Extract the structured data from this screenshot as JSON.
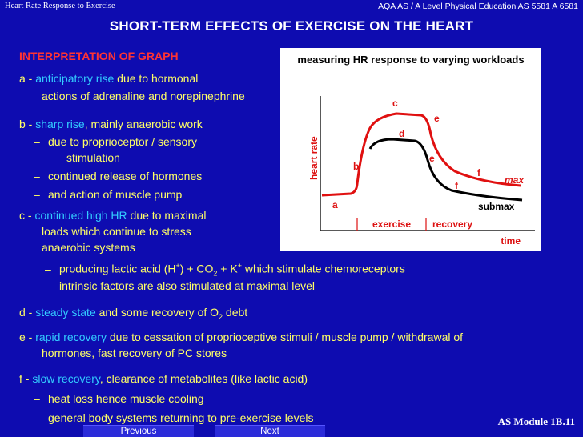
{
  "header": {
    "left": "Heart Rate Response to Exercise",
    "right": "AQA AS / A Level Physical Education AS 5581 A 6581"
  },
  "title": "SHORT-TERM EFFECTS OF EXERCISE ON THE HEART",
  "interpretation_heading": "INTERPRETATION OF GRAPH",
  "items": {
    "a": {
      "letter": "a - ",
      "key": "anticipatory rise",
      "rest": " due to hormonal",
      "cont": "actions of adrenaline and norepinephrine"
    },
    "b": {
      "letter": "b - ",
      "key": "sharp rise",
      "rest": ", mainly anaerobic work",
      "bullets": [
        "due to proprioceptor / sensory",
        "stimulation",
        "continued release of hormones",
        "and action of muscle pump"
      ]
    },
    "c": {
      "letter": "c - ",
      "key": "continued high HR",
      "rest": " due to maximal",
      "cont1": "loads which continue to stress",
      "cont2": "anaerobic systems",
      "bullet1_pre": "producing lactic acid (H",
      "bullet1_sup1": "+",
      "bullet1_mid1": ") + CO",
      "bullet1_sub": "2",
      "bullet1_mid2": " + K",
      "bullet1_sup2": "+",
      "bullet1_post": " which stimulate chemoreceptors",
      "bullet2": "intrinsic factors are also stimulated at maximal level"
    },
    "d": {
      "letter": "d - ",
      "key": "steady state",
      "rest": " and some recovery of O",
      "sub": "2",
      "rest2": " debt"
    },
    "e": {
      "letter": "e - ",
      "key": "rapid recovery",
      "rest": " due to cessation of proprioceptive stimuli / muscle pump / withdrawal of",
      "cont": "hormones, fast recovery of PC stores"
    },
    "f": {
      "letter": "f - ",
      "key": "slow recovery",
      "rest": ", clearance of metabolites (like lactic acid)",
      "bullets": [
        "heat loss hence muscle cooling",
        "general body systems returning to pre-exercise levels"
      ]
    }
  },
  "graph": {
    "title": "measuring HR response to varying workloads",
    "ylabel": "heart rate",
    "xlabel": "time",
    "phase_exercise": "exercise",
    "phase_recovery": "recovery",
    "curve_labels": [
      "a",
      "b",
      "c",
      "d",
      "e",
      "e",
      "f",
      "f"
    ],
    "max_label": "max",
    "submax_label": "submax"
  },
  "footer": {
    "module": "AS Module 1B.11",
    "previous": "Previous",
    "next": "Next"
  },
  "colors": {
    "background": "#0e0cb0",
    "key_term": "#33ccff",
    "heading": "#ff3333",
    "text": "#ffff66"
  }
}
